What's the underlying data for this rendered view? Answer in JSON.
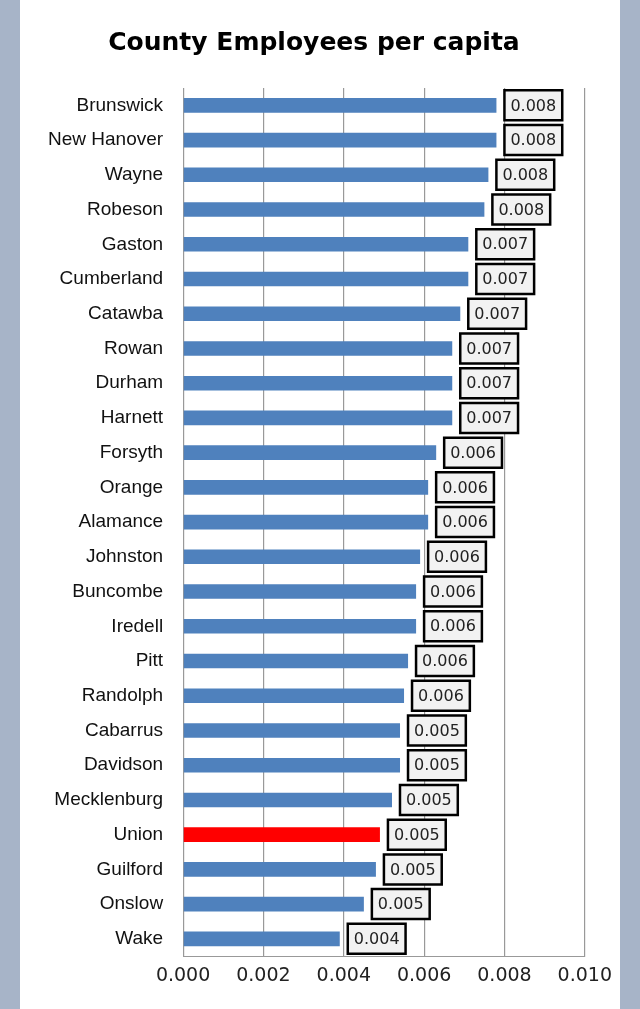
{
  "chart_data": {
    "type": "bar",
    "orientation": "horizontal",
    "title": "County Employees per capita",
    "categories": [
      "Brunswick",
      "New Hanover",
      "Wayne",
      "Robeson",
      "Gaston",
      "Cumberland",
      "Catawba",
      "Rowan",
      "Durham",
      "Harnett",
      "Forsyth",
      "Orange",
      "Alamance",
      "Johnston",
      "Buncombe",
      "Iredell",
      "Pitt",
      "Randolph",
      "Cabarrus",
      "Davidson",
      "Mecklenburg",
      "Union",
      "Guilford",
      "Onslow",
      "Wake"
    ],
    "values": [
      0.0078,
      0.0078,
      0.0076,
      0.0075,
      0.0071,
      0.0071,
      0.0069,
      0.0067,
      0.0067,
      0.0067,
      0.0063,
      0.0061,
      0.0061,
      0.0059,
      0.0058,
      0.0058,
      0.0056,
      0.0055,
      0.0054,
      0.0054,
      0.0052,
      0.0049,
      0.0048,
      0.0045,
      0.0039
    ],
    "colors": [
      "#4f81bd",
      "#4f81bd",
      "#4f81bd",
      "#4f81bd",
      "#4f81bd",
      "#4f81bd",
      "#4f81bd",
      "#4f81bd",
      "#4f81bd",
      "#4f81bd",
      "#4f81bd",
      "#4f81bd",
      "#4f81bd",
      "#4f81bd",
      "#4f81bd",
      "#4f81bd",
      "#4f81bd",
      "#4f81bd",
      "#4f81bd",
      "#4f81bd",
      "#4f81bd",
      "#ff0000",
      "#4f81bd",
      "#4f81bd",
      "#4f81bd"
    ],
    "value_labels": [
      "0.008",
      "0.008",
      "0.008",
      "0.008",
      "0.007",
      "0.007",
      "0.007",
      "0.007",
      "0.007",
      "0.007",
      "0.006",
      "0.006",
      "0.006",
      "0.006",
      "0.006",
      "0.006",
      "0.006",
      "0.006",
      "0.005",
      "0.005",
      "0.005",
      "0.005",
      "0.005",
      "0.005",
      "0.004"
    ],
    "xlim": [
      0,
      0.01
    ],
    "xticks": [
      {
        "value": 0,
        "label": "0.000"
      },
      {
        "value": 0.002,
        "label": "0.002"
      },
      {
        "value": 0.004,
        "label": "0.004"
      },
      {
        "value": 0.006,
        "label": "0.006"
      },
      {
        "value": 0.008,
        "label": "0.008"
      },
      {
        "value": 0.01,
        "label": "0.010"
      }
    ],
    "grid": "x",
    "legend": false
  }
}
